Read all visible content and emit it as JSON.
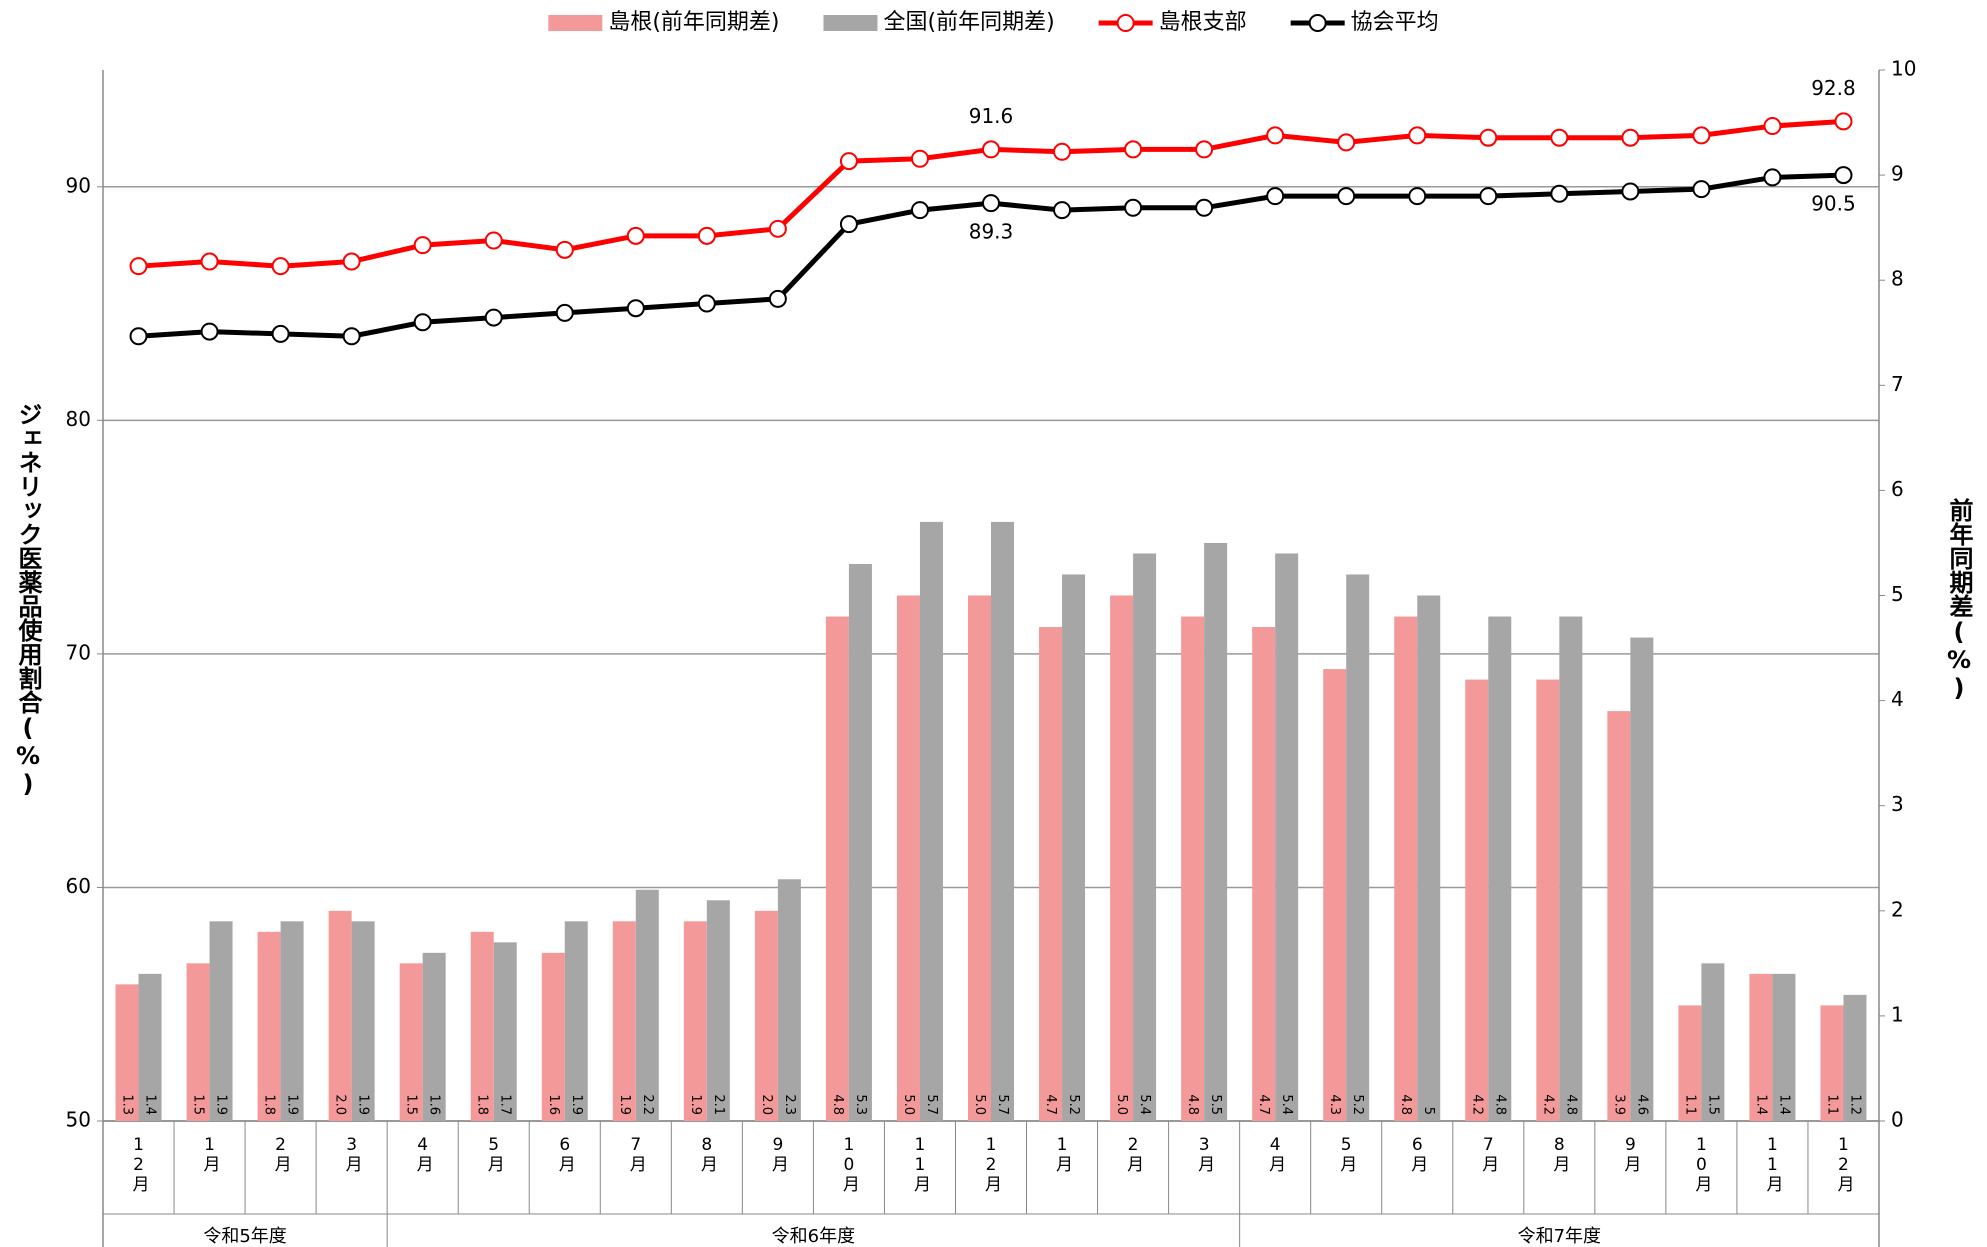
{
  "chart_data": {
    "type": "bar-line",
    "categories": [
      "12月",
      "1月",
      "2月",
      "3月",
      "4月",
      "5月",
      "6月",
      "7月",
      "8月",
      "9月",
      "10月",
      "11月",
      "12月",
      "1月",
      "2月",
      "3月",
      "4月",
      "5月",
      "6月",
      "7月",
      "8月",
      "9月",
      "10月",
      "11月",
      "12月"
    ],
    "groups": [
      {
        "label": "令和5年度",
        "span": 4
      },
      {
        "label": "令和6年度",
        "span": 12
      },
      {
        "label": "令和7年度",
        "span": 9
      }
    ],
    "series": [
      {
        "name": "島根(前年同期差)",
        "type": "bar",
        "axis": "y2",
        "color": "#f4999a",
        "values": [
          1.3,
          1.5,
          1.8,
          2.0,
          1.5,
          1.8,
          1.6,
          1.9,
          1.9,
          2.0,
          4.8,
          5.0,
          5.0,
          4.7,
          5.0,
          4.8,
          4.7,
          4.3,
          4.8,
          4.2,
          4.2,
          3.9,
          1.1,
          1.4,
          1.1
        ],
        "value_labels": [
          "1.3",
          "1.5",
          "1.8",
          "2.0",
          "1.5",
          "1.8",
          "1.6",
          "1.9",
          "1.9",
          "2.0",
          "4.8",
          "5.0",
          "5.0",
          "4.7",
          "5.0",
          "4.8",
          "4.7",
          "4.3",
          "4.8",
          "4.2",
          "4.2",
          "3.9",
          "1.1",
          "1.4",
          "1.1"
        ]
      },
      {
        "name": "全国(前年同期差)",
        "type": "bar",
        "axis": "y2",
        "color": "#a6a6a6",
        "values": [
          1.4,
          1.9,
          1.9,
          1.9,
          1.6,
          1.7,
          1.9,
          2.2,
          2.1,
          2.3,
          5.3,
          5.7,
          5.7,
          5.2,
          5.4,
          5.5,
          5.4,
          5.2,
          5,
          4.8,
          4.8,
          4.6,
          1.5,
          1.4,
          1.2
        ],
        "value_labels": [
          "1.4",
          "1.9",
          "1.9",
          "1.9",
          "1.6",
          "1.7",
          "1.9",
          "2.2",
          "2.1",
          "2.3",
          "5.3",
          "5.7",
          "5.7",
          "5.2",
          "5.4",
          "5.5",
          "5.4",
          "5.2",
          "5",
          "4.8",
          "4.8",
          "4.6",
          "1.5",
          "1.4",
          "1.2"
        ]
      },
      {
        "name": "島根支部",
        "type": "line",
        "color": "#ff0000",
        "values": [
          86.6,
          86.8,
          86.6,
          86.8,
          87.5,
          87.7,
          87.3,
          87.9,
          87.9,
          88.2,
          91.1,
          91.2,
          91.6,
          91.5,
          91.6,
          91.6,
          92.2,
          91.9,
          92.2,
          92.1,
          92.1,
          92.1,
          92.2,
          92.6,
          92.8
        ],
        "value_labels": [
          null,
          null,
          null,
          null,
          null,
          null,
          null,
          null,
          null,
          null,
          null,
          null,
          "91.6",
          null,
          null,
          null,
          null,
          null,
          null,
          null,
          null,
          null,
          null,
          null,
          "92.8"
        ]
      },
      {
        "name": "協会平均",
        "type": "line",
        "color": "#000000",
        "values": [
          83.6,
          83.8,
          83.7,
          83.6,
          84.2,
          84.4,
          84.6,
          84.8,
          85.0,
          85.2,
          88.4,
          89.0,
          89.3,
          89.0,
          89.1,
          89.1,
          89.6,
          89.6,
          89.6,
          89.6,
          89.7,
          89.8,
          89.9,
          90.4,
          90.5
        ],
        "value_labels": [
          null,
          null,
          null,
          null,
          null,
          null,
          null,
          null,
          null,
          null,
          null,
          null,
          "89.3",
          null,
          null,
          null,
          null,
          null,
          null,
          null,
          null,
          null,
          null,
          null,
          "90.5"
        ]
      }
    ],
    "ylabel": "ジェネリック医薬品使用割合(%)",
    "y2label": "前年同期差(%)",
    "ylim": [
      50,
      95
    ],
    "yticks": [
      50,
      60,
      70,
      80,
      90
    ],
    "y2lim": [
      0,
      10
    ],
    "y2ticks": [
      0,
      1,
      2,
      3,
      4,
      5,
      6,
      7,
      8,
      9,
      10
    ],
    "grid": true,
    "legend": "top"
  }
}
